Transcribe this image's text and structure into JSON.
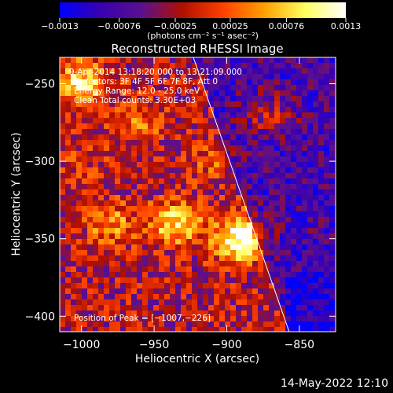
{
  "chart_data": {
    "type": "heatmap",
    "title": "Reconstructed RHESSI Image",
    "xlabel": "Heliocentric X (arcsec)",
    "ylabel": "Heliocentric Y (arcsec)",
    "xlim": [
      -1015,
      -825
    ],
    "ylim": [
      -410,
      -233
    ],
    "x_ticks": [
      -1000,
      -950,
      -900,
      -850
    ],
    "x_tick_labels": [
      "−1000",
      "−950",
      "−900",
      "−850"
    ],
    "y_ticks": [
      -250,
      -300,
      -350,
      -400
    ],
    "y_tick_labels": [
      "−250",
      "−300",
      "−350",
      "−400"
    ],
    "colorbar": {
      "min": -0.0013,
      "max": 0.0013,
      "ticks": [
        -0.0013,
        -0.00076,
        -0.00025,
        0.00025,
        0.00076,
        0.0013
      ],
      "tick_labels": [
        "−0.0013",
        "−0.00076",
        "−0.00025",
        "0.00025",
        "0.00076",
        "0.0013"
      ],
      "units_label": "(photons cm⁻² s⁻¹ asec⁻²)",
      "colors": [
        "#0000ff",
        "#3a00b0",
        "#5a1090",
        "#b01000",
        "#ff4000",
        "#ffa000",
        "#ffff60",
        "#ffffff"
      ]
    },
    "annotations": [
      "9-Apr-2014 13:18:20.000 to 13:21:09.000",
      "Detectors: 3F 4F 5F 6F 7F 8F, Att 0",
      "Energy Range: 12.0 - 25.0 keV",
      "Clean     Total counts: 3.30E+03"
    ],
    "peak_label": "Position of Peak = [−1007,−226]",
    "limb_line": {
      "x": [
        -923,
        -857
      ],
      "y": [
        -233,
        -410
      ]
    },
    "bright_regions": [
      {
        "x": -1000,
        "y": -250,
        "level": 0.8
      },
      {
        "x": -960,
        "y": -275,
        "level": 0.55
      },
      {
        "x": -935,
        "y": -340,
        "level": 0.75
      },
      {
        "x": -890,
        "y": -350,
        "level": 0.95
      },
      {
        "x": -870,
        "y": -270,
        "level": 0.6
      },
      {
        "x": -980,
        "y": -340,
        "level": 0.6
      },
      {
        "x": -1000,
        "y": -300,
        "level": 0.45
      },
      {
        "x": -910,
        "y": -300,
        "level": 0.5
      }
    ],
    "grid": false
  },
  "footer": {
    "timestamp": "14-May-2022 12:10"
  }
}
